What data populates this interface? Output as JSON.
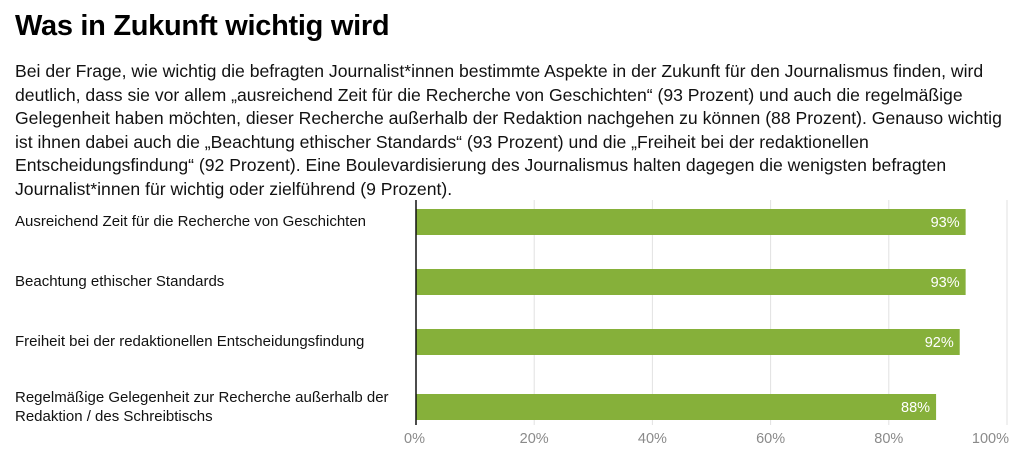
{
  "header": {
    "title": "Was in Zukunft wichtig wird",
    "intro": "Bei der Frage, wie wichtig die befragten Journalist*innen bestimmte Aspekte in der Zukunft für den Journalismus finden, wird deutlich, dass sie vor allem „ausreichend Zeit für die Recherche von Geschichten“ (93 Prozent) und auch die regelmäßige Gelegenheit haben möchten, dieser Recherche außerhalb der Redaktion nachgehen zu können (88 Prozent).  Genauso wichtig ist ihnen dabei auch die „Beachtung ethischer Standards“ (93 Prozent) und die „Freiheit bei der redaktionellen Entscheidungsfindung“ (92 Prozent).  Eine Boulevardisierung des Journalismus halten dagegen die wenigsten befragten Journalist*innen für wichtig oder zielführend (9 Prozent)."
  },
  "colors": {
    "bar": "#86b03a",
    "value_label": "#ffffff",
    "tick_label": "#8a8a8a",
    "grid": "#e2e2e2"
  },
  "chart_data": {
    "type": "bar",
    "orientation": "horizontal",
    "categories": [
      "Ausreichend Zeit für die Recherche von Geschichten",
      "Beachtung ethischer Standards",
      "Freiheit bei der redaktionellen Entscheidungsfindung",
      "Regelmäßige Gelegenheit zur Recherche außerhalb der Redaktion / des Schreibtischs"
    ],
    "values": [
      93,
      93,
      92,
      88
    ],
    "value_labels": [
      "93%",
      "93%",
      "92%",
      "88%"
    ],
    "xlim": [
      0,
      100
    ],
    "x_ticks": [
      0,
      20,
      40,
      60,
      80,
      100
    ],
    "x_tick_labels": [
      "0%",
      "20%",
      "40%",
      "60%",
      "80%",
      "100%"
    ],
    "grid": true,
    "legend": "none"
  }
}
